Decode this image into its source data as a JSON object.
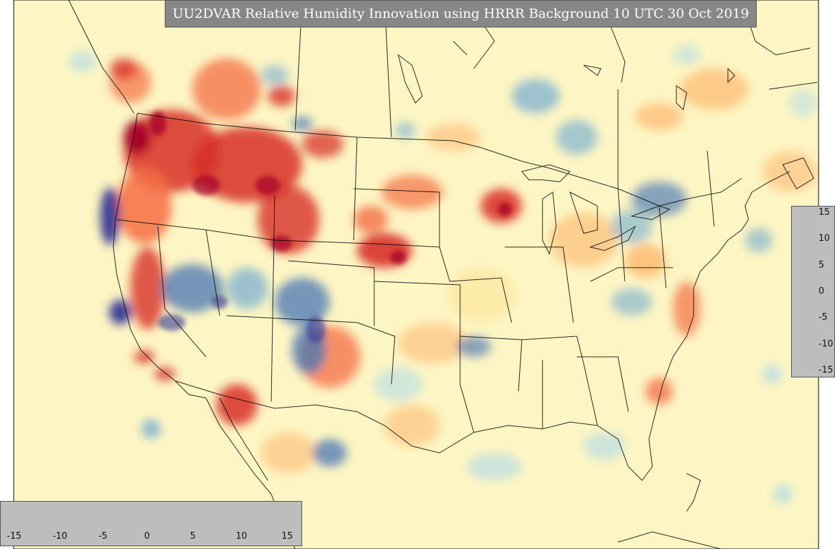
{
  "title": "UU2DVAR Relative Humidity Innovation using HRRR Background 10 UTC 30 Oct 2019",
  "map": {
    "region": "CONUS",
    "background_color": "#fdf6c4",
    "field": "Relative Humidity Innovation"
  },
  "colorbar": {
    "min": -15,
    "max": 15,
    "ticks_horizontal": [
      "-15",
      "-10",
      "-5",
      "0",
      "5",
      "10",
      "15"
    ],
    "ticks_vertical": [
      "15",
      "10",
      "5",
      "0",
      "-5",
      "-10",
      "-15"
    ],
    "colors": [
      "#313695",
      "#4575b4",
      "#74add1",
      "#abd9e9",
      "#e0f3f8",
      "#ffffbf",
      "#fee090",
      "#fdae61",
      "#f46d43",
      "#d73027",
      "#a50026"
    ]
  }
}
